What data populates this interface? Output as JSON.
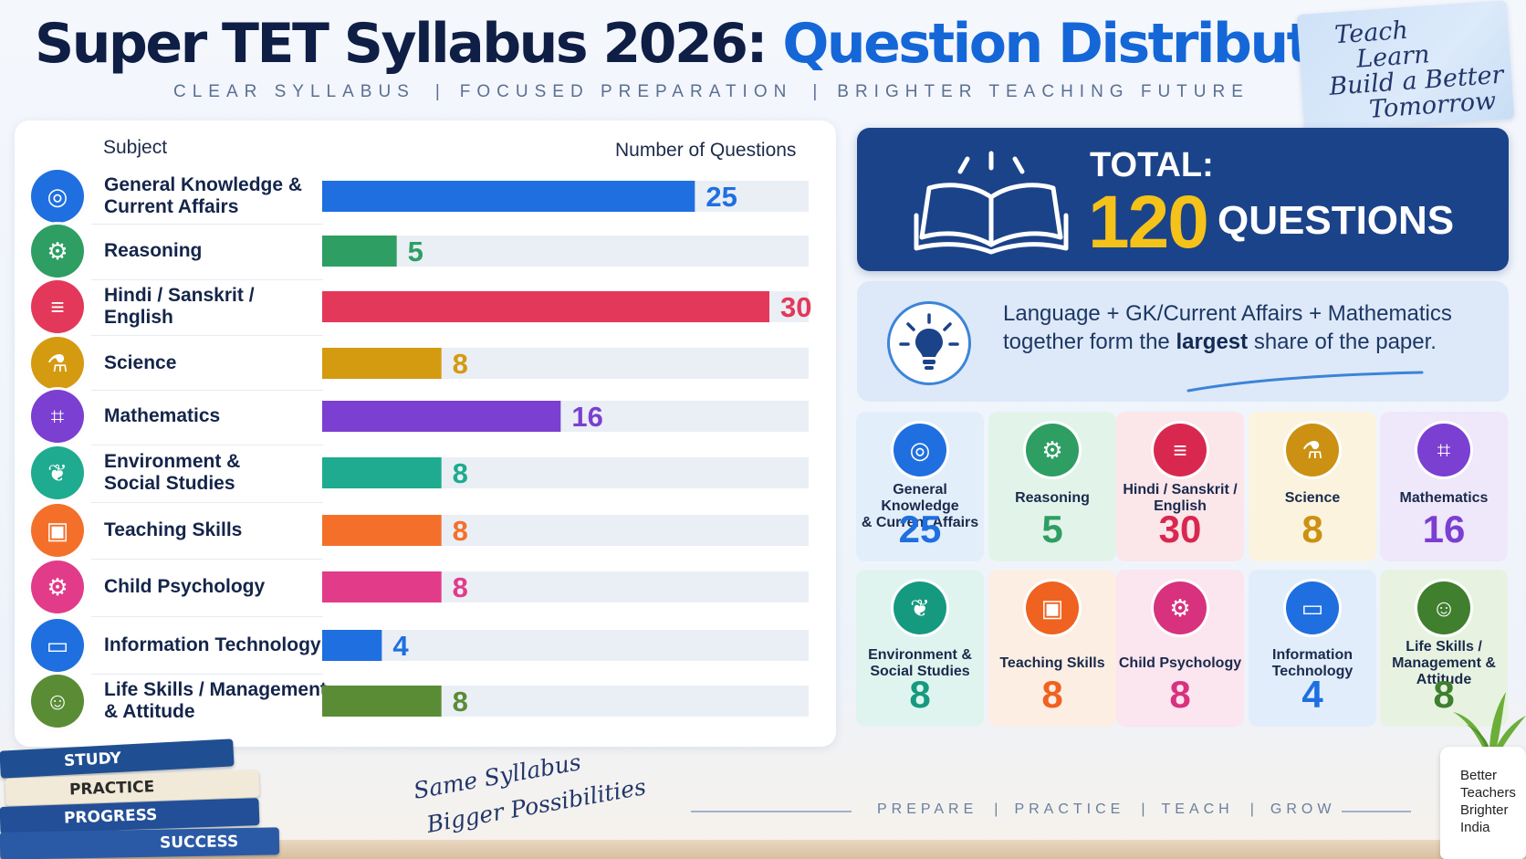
{
  "header": {
    "title_part1": "Super TET Syllabus 2026:",
    "title_part2": "Question Distribution",
    "tagline": [
      "CLEAR SYLLABUS",
      "FOCUSED PREPARATION",
      "BRIGHTER TEACHING FUTURE"
    ],
    "tagline_separator": "|",
    "sticky_note": [
      "Teach",
      "Learn",
      "Build a Better",
      "Tomorrow"
    ]
  },
  "chart_data": {
    "type": "bar",
    "orientation": "horizontal",
    "column_headers": {
      "subject": "Subject",
      "number": "Number of Questions"
    },
    "categories": [
      "General Knowledge &\nCurrent Affairs",
      "Reasoning",
      "Hindi / Sanskrit /\nEnglish",
      "Science",
      "Mathematics",
      "Environment &\nSocial Studies",
      "Teaching Skills",
      "Child Psychology",
      "Information Technology",
      "Life Skills / Management\n& Attitude"
    ],
    "values": [
      25,
      5,
      30,
      8,
      16,
      8,
      8,
      8,
      4,
      8
    ],
    "value_labels": [
      "25",
      "5",
      "30",
      "8",
      "16",
      "8",
      "8",
      "8",
      "4",
      "8"
    ],
    "colors": [
      "#1f6fe0",
      "#2e9e63",
      "#e3385a",
      "#d49a10",
      "#7b3fd1",
      "#1eab8f",
      "#f4702a",
      "#e23b8a",
      "#1f6fe0",
      "#5a8c35"
    ],
    "icons": [
      "globe-icon",
      "brain-gear-icon",
      "open-book-icon",
      "flask-icon",
      "calculator-icon",
      "leaf-icon",
      "teacher-board-icon",
      "head-gear-icon",
      "laptop-icon",
      "group-icon"
    ],
    "xlim": [
      0,
      30
    ],
    "grid": false,
    "legend": "none"
  },
  "total": {
    "label": "TOTAL:",
    "value": "120",
    "unit": "QUESTIONS",
    "icon": "open-book-icon"
  },
  "insight": {
    "icon": "lightbulb-icon",
    "text_before": "Language + GK/Current Affairs + Mathematics together form the",
    "text_bold": "largest",
    "text_after": "share of the paper."
  },
  "cards": [
    {
      "label": "General Knowledge\n& Current Affairs",
      "value": "25",
      "color": "#1f6fe0",
      "bg": "#e3eefb",
      "icon": "globe-icon"
    },
    {
      "label": "Reasoning",
      "value": "5",
      "color": "#2e9e63",
      "bg": "#e2f4ea",
      "icon": "brain-gear-icon"
    },
    {
      "label": "Hindi / Sanskrit /\nEnglish",
      "value": "30",
      "color": "#d9284f",
      "bg": "#fbe6ea",
      "icon": "open-book-icon"
    },
    {
      "label": "Science",
      "value": "8",
      "color": "#cc9112",
      "bg": "#fbf3de",
      "icon": "flask-icon"
    },
    {
      "label": "Mathematics",
      "value": "16",
      "color": "#7b3fd1",
      "bg": "#efe7fa",
      "icon": "calculator-icon"
    },
    {
      "label": "Environment &\nSocial Studies",
      "value": "8",
      "color": "#159a80",
      "bg": "#e0f4ef",
      "icon": "leaf-icon"
    },
    {
      "label": "Teaching Skills",
      "value": "8",
      "color": "#ef6220",
      "bg": "#fdeee3",
      "icon": "teacher-board-icon"
    },
    {
      "label": "Child Psychology",
      "value": "8",
      "color": "#d8327f",
      "bg": "#fbe5ee",
      "icon": "head-gear-icon"
    },
    {
      "label": "Information\nTechnology",
      "value": "4",
      "color": "#1f6fe0",
      "bg": "#e1edfa",
      "icon": "laptop-icon"
    },
    {
      "label": "Life Skills /\nManagement &\nAttitude",
      "value": "8",
      "color": "#3f7f2e",
      "bg": "#e7f3e0",
      "icon": "group-icon"
    }
  ],
  "footer": {
    "books": [
      "STUDY",
      "PRACTICE",
      "PROGRESS",
      "SUCCESS"
    ],
    "slogan": [
      "Same Syllabus",
      "Bigger Possibilities"
    ],
    "steps": [
      "PREPARE",
      "PRACTICE",
      "TEACH",
      "GROW"
    ],
    "steps_separator": "|",
    "pot_text": "Better\nTeachers\nBrighter\nIndia"
  }
}
